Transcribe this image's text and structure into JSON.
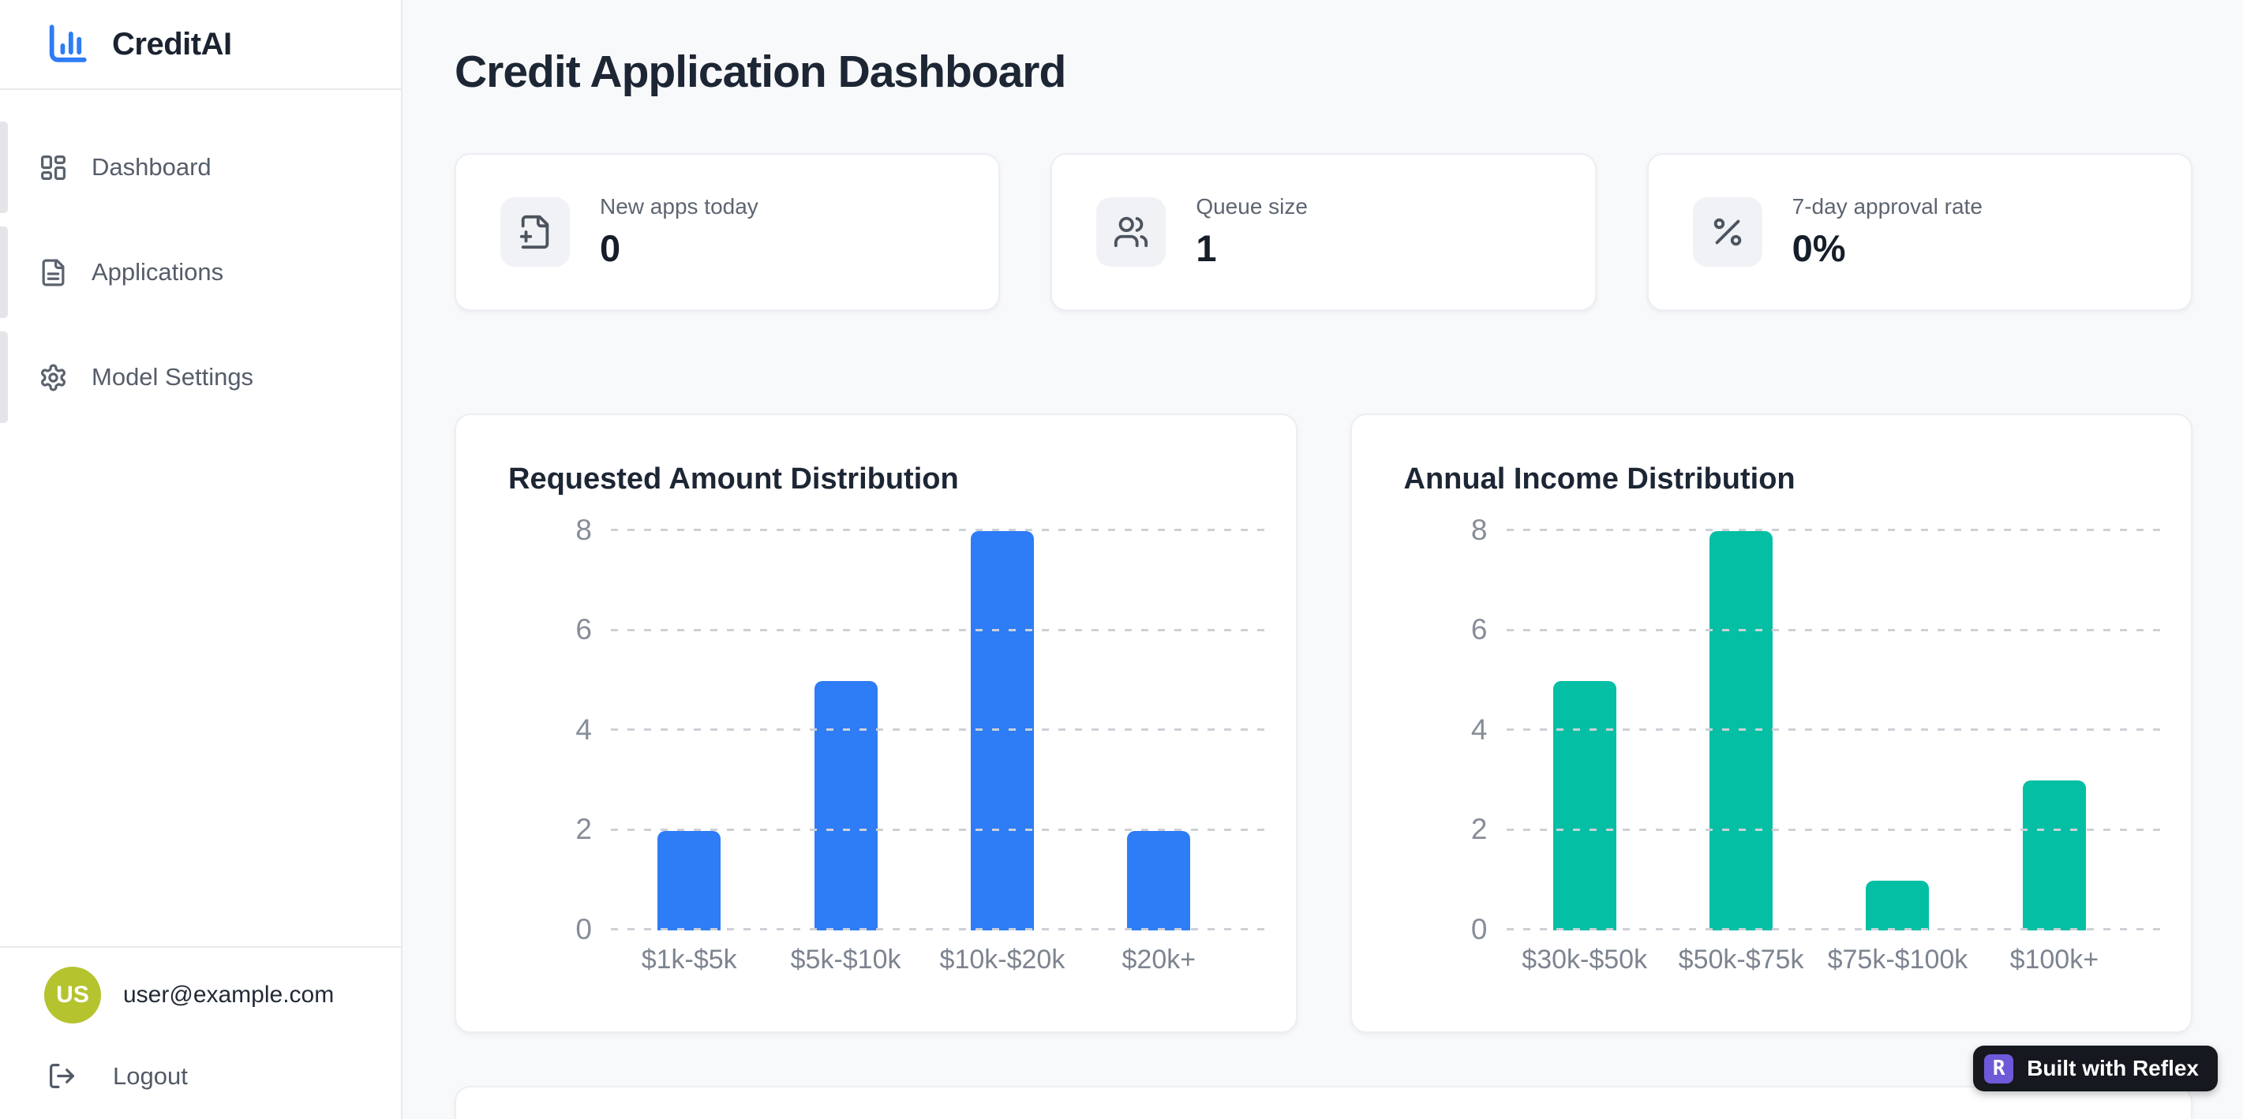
{
  "app": {
    "name": "CreditAI"
  },
  "sidebar": {
    "items": [
      {
        "label": "Dashboard",
        "icon": "dashboard-grid-icon"
      },
      {
        "label": "Applications",
        "icon": "document-icon"
      },
      {
        "label": "Model Settings",
        "icon": "gear-icon"
      }
    ],
    "user": {
      "initials": "US",
      "email": "user@example.com",
      "avatar_color": "#b5c32e"
    },
    "logout_label": "Logout"
  },
  "header": {
    "title": "Credit Application Dashboard"
  },
  "stats": [
    {
      "label": "New apps today",
      "value": "0",
      "icon": "file-plus-icon"
    },
    {
      "label": "Queue size",
      "value": "1",
      "icon": "users-icon"
    },
    {
      "label": "7-day approval rate",
      "value": "0%",
      "icon": "percent-icon"
    }
  ],
  "chart_data": [
    {
      "type": "bar",
      "title": "Requested Amount Distribution",
      "categories": [
        "$1k-$5k",
        "$5k-$10k",
        "$10k-$20k",
        "$20k+"
      ],
      "values": [
        2,
        5,
        8,
        2
      ],
      "bar_color": "#2e7cf6",
      "ylim": [
        0,
        8
      ],
      "yticks": [
        0,
        2,
        4,
        6,
        8
      ],
      "xlabel": "",
      "ylabel": "",
      "grid": "horizontal-dashed",
      "legend": "none"
    },
    {
      "type": "bar",
      "title": "Annual Income Distribution",
      "categories": [
        "$30k-$50k",
        "$50k-$75k",
        "$75k-$100k",
        "$100k+"
      ],
      "values": [
        5,
        8,
        1,
        3
      ],
      "bar_color": "#04bfa4",
      "ylim": [
        0,
        8
      ],
      "yticks": [
        0,
        2,
        4,
        6,
        8
      ],
      "xlabel": "",
      "ylabel": "",
      "grid": "horizontal-dashed",
      "legend": "none"
    }
  ],
  "badge": {
    "label": "Built with Reflex",
    "icon_letter": "R",
    "icon_color": "#6e59d9",
    "bg_color": "#15181e"
  },
  "colors": {
    "accent_blue": "#2e7cf6",
    "accent_teal": "#04bfa4",
    "main_bg": "#f8f9fb",
    "sidebar_bg": "#ffffff"
  }
}
